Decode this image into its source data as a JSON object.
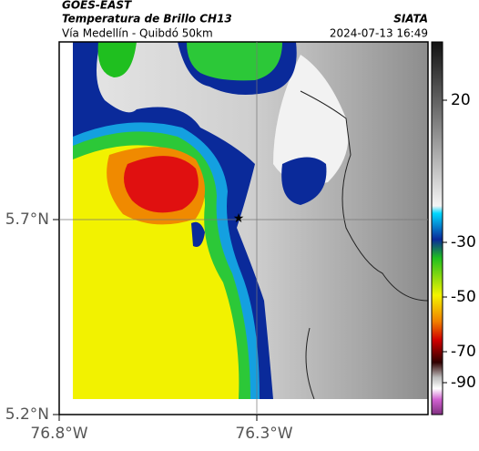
{
  "header": {
    "title": "GOES-EAST",
    "subtitle": "Temperatura de Brillo CH13",
    "location": "Vía Medellín - Quibdó 50km",
    "source": "SIATA",
    "datetime": "2024-07-13 16:49"
  },
  "map": {
    "lat_ticks": [
      "5.7°N",
      "5.2°N"
    ],
    "lon_ticks": [
      "76.8°W",
      "76.3°W"
    ]
  },
  "colorbar": {
    "ticks": [
      "20",
      "-30",
      "-50",
      "-70",
      "-90"
    ]
  }
}
